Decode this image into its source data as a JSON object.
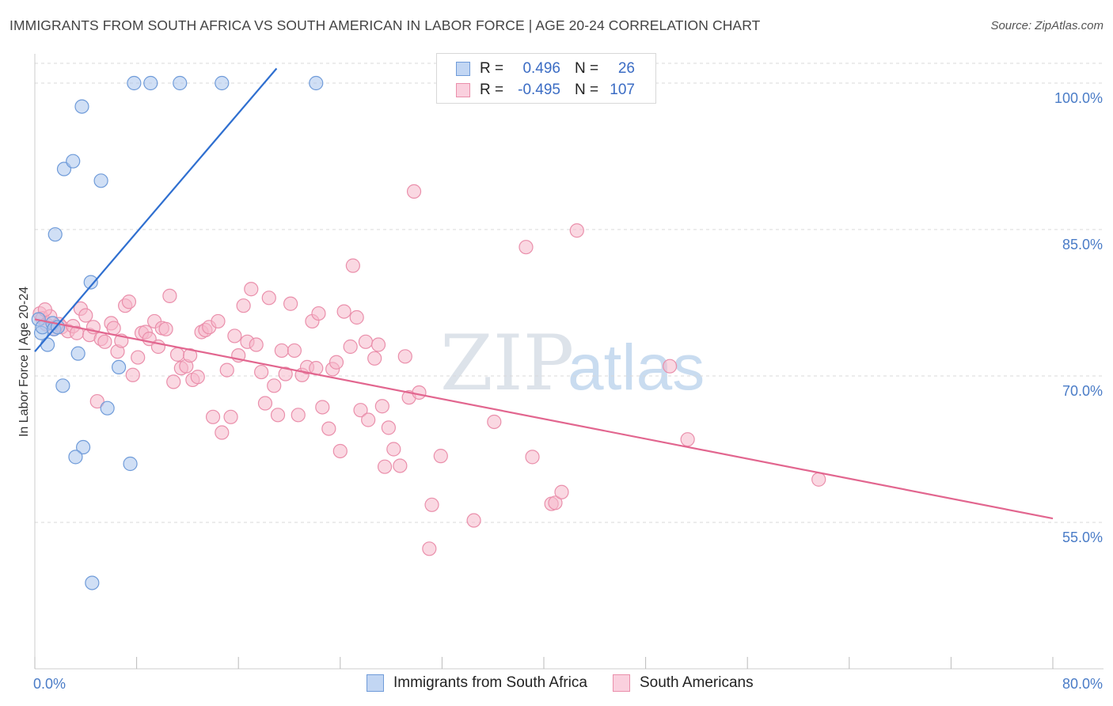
{
  "header": {
    "title": "IMMIGRANTS FROM SOUTH AFRICA VS SOUTH AMERICAN IN LABOR FORCE | AGE 20-24 CORRELATION CHART",
    "source": "Source: ZipAtlas.com"
  },
  "legend": {
    "rows": [
      {
        "r_label": "R =",
        "r_value": "0.496",
        "n_label": "N =",
        "n_value": "26"
      },
      {
        "r_label": "R =",
        "r_value": "-0.495",
        "n_label": "N =",
        "n_value": "107"
      }
    ]
  },
  "bottom_legend": {
    "series1": "Immigrants from South Africa",
    "series2": "South Americans"
  },
  "watermark": {
    "zip": "ZIP",
    "atlas": "atlas"
  },
  "colors": {
    "blue_fill": "#a9c4ec",
    "blue_stroke": "#6f9bd9",
    "blue_line": "#2f6fd0",
    "pink_fill": "#f6b8cb",
    "pink_stroke": "#ea8fab",
    "pink_line": "#e2668f",
    "grid": "#d9d9d9",
    "tick_label": "#4a7cc7"
  },
  "chart_data": {
    "type": "scatter",
    "ylabel": "In Labor Force | Age 20-24",
    "xlim": [
      0,
      80
    ],
    "ylim": [
      40,
      103
    ],
    "x_ticks": [
      {
        "value": 0,
        "label": "0.0%"
      },
      {
        "value": 80,
        "label": "80.0%"
      }
    ],
    "y_ticks": [
      {
        "value": 55,
        "label": "55.0%"
      },
      {
        "value": 70,
        "label": "70.0%"
      },
      {
        "value": 85,
        "label": "85.0%"
      },
      {
        "value": 100,
        "label": "100.0%"
      }
    ],
    "series": [
      {
        "name": "Immigrants from South Africa",
        "color": "blue",
        "r": 0.496,
        "n": 26,
        "trend": {
          "x": [
            0,
            19
          ],
          "y": [
            72.5,
            101.5
          ]
        },
        "points": [
          [
            0.3,
            75.8
          ],
          [
            0.5,
            74.4
          ],
          [
            0.6,
            75.0
          ],
          [
            1.0,
            73.2
          ],
          [
            1.4,
            75.4
          ],
          [
            1.5,
            74.8
          ],
          [
            1.6,
            84.5
          ],
          [
            1.8,
            75.0
          ],
          [
            2.3,
            91.2
          ],
          [
            2.2,
            69.0
          ],
          [
            3.0,
            92.0
          ],
          [
            3.4,
            72.3
          ],
          [
            3.7,
            97.6
          ],
          [
            3.8,
            62.7
          ],
          [
            3.2,
            61.7
          ],
          [
            4.4,
            79.6
          ],
          [
            4.5,
            48.8
          ],
          [
            5.2,
            90.0
          ],
          [
            5.7,
            66.7
          ],
          [
            6.6,
            70.9
          ],
          [
            7.5,
            61.0
          ],
          [
            7.8,
            100.0
          ],
          [
            9.1,
            100.0
          ],
          [
            11.4,
            100.0
          ],
          [
            14.7,
            100.0
          ],
          [
            22.1,
            100.0
          ]
        ]
      },
      {
        "name": "South Americans",
        "color": "pink",
        "r": -0.495,
        "n": 107,
        "trend": {
          "x": [
            0,
            80
          ],
          "y": [
            75.8,
            55.4
          ]
        },
        "points": [
          [
            0.4,
            76.4
          ],
          [
            0.6,
            75.9
          ],
          [
            0.9,
            75.3
          ],
          [
            1.2,
            76.1
          ],
          [
            1.5,
            74.8
          ],
          [
            1.9,
            75.3
          ],
          [
            2.1,
            75.0
          ],
          [
            2.6,
            74.6
          ],
          [
            3.0,
            75.1
          ],
          [
            3.3,
            74.4
          ],
          [
            3.6,
            76.9
          ],
          [
            4.0,
            76.2
          ],
          [
            4.3,
            74.2
          ],
          [
            4.6,
            75.0
          ],
          [
            4.9,
            67.4
          ],
          [
            5.2,
            73.8
          ],
          [
            5.5,
            73.5
          ],
          [
            6.0,
            75.4
          ],
          [
            6.2,
            74.9
          ],
          [
            6.5,
            72.5
          ],
          [
            6.8,
            73.6
          ],
          [
            7.1,
            77.2
          ],
          [
            7.4,
            77.6
          ],
          [
            7.7,
            70.1
          ],
          [
            8.1,
            71.9
          ],
          [
            8.4,
            74.4
          ],
          [
            8.7,
            74.5
          ],
          [
            9.0,
            73.8
          ],
          [
            9.4,
            75.6
          ],
          [
            9.7,
            73.0
          ],
          [
            10.0,
            74.9
          ],
          [
            10.3,
            74.8
          ],
          [
            10.6,
            78.2
          ],
          [
            10.9,
            69.4
          ],
          [
            11.2,
            72.2
          ],
          [
            11.5,
            70.8
          ],
          [
            11.9,
            71.0
          ],
          [
            12.2,
            72.1
          ],
          [
            12.4,
            69.6
          ],
          [
            12.8,
            69.9
          ],
          [
            13.1,
            74.5
          ],
          [
            13.4,
            74.7
          ],
          [
            13.7,
            75.0
          ],
          [
            14.0,
            65.8
          ],
          [
            14.4,
            75.6
          ],
          [
            14.7,
            64.2
          ],
          [
            15.1,
            70.6
          ],
          [
            15.4,
            65.8
          ],
          [
            15.7,
            74.1
          ],
          [
            16.0,
            72.1
          ],
          [
            16.4,
            77.2
          ],
          [
            16.7,
            73.5
          ],
          [
            17.0,
            78.9
          ],
          [
            17.4,
            73.2
          ],
          [
            17.8,
            70.4
          ],
          [
            18.1,
            67.2
          ],
          [
            18.4,
            78.0
          ],
          [
            18.8,
            69.0
          ],
          [
            19.1,
            66.0
          ],
          [
            19.4,
            72.6
          ],
          [
            19.7,
            70.2
          ],
          [
            20.1,
            77.4
          ],
          [
            20.4,
            72.6
          ],
          [
            20.7,
            66.0
          ],
          [
            21.0,
            70.1
          ],
          [
            21.4,
            70.9
          ],
          [
            21.8,
            75.6
          ],
          [
            22.1,
            70.8
          ],
          [
            22.3,
            76.4
          ],
          [
            22.6,
            66.8
          ],
          [
            23.1,
            64.6
          ],
          [
            23.4,
            70.7
          ],
          [
            23.7,
            71.4
          ],
          [
            24.0,
            62.3
          ],
          [
            24.3,
            76.6
          ],
          [
            24.8,
            73.0
          ],
          [
            25.0,
            81.3
          ],
          [
            25.3,
            76.0
          ],
          [
            25.6,
            66.5
          ],
          [
            26.0,
            73.5
          ],
          [
            26.2,
            65.5
          ],
          [
            26.7,
            71.8
          ],
          [
            27.0,
            73.2
          ],
          [
            27.3,
            66.9
          ],
          [
            27.5,
            60.7
          ],
          [
            27.8,
            64.7
          ],
          [
            28.2,
            62.5
          ],
          [
            28.7,
            60.8
          ],
          [
            29.1,
            72.0
          ],
          [
            29.4,
            67.8
          ],
          [
            29.8,
            88.9
          ],
          [
            30.2,
            68.3
          ],
          [
            31.2,
            56.8
          ],
          [
            31.0,
            52.3
          ],
          [
            31.9,
            61.8
          ],
          [
            34.5,
            55.2
          ],
          [
            36.1,
            65.3
          ],
          [
            38.6,
            83.2
          ],
          [
            39.1,
            61.7
          ],
          [
            40.6,
            56.9
          ],
          [
            40.9,
            57.0
          ],
          [
            41.4,
            58.1
          ],
          [
            42.6,
            84.9
          ],
          [
            49.9,
            71.0
          ],
          [
            51.3,
            63.5
          ],
          [
            61.6,
            59.4
          ],
          [
            0.8,
            76.8
          ]
        ]
      }
    ]
  }
}
